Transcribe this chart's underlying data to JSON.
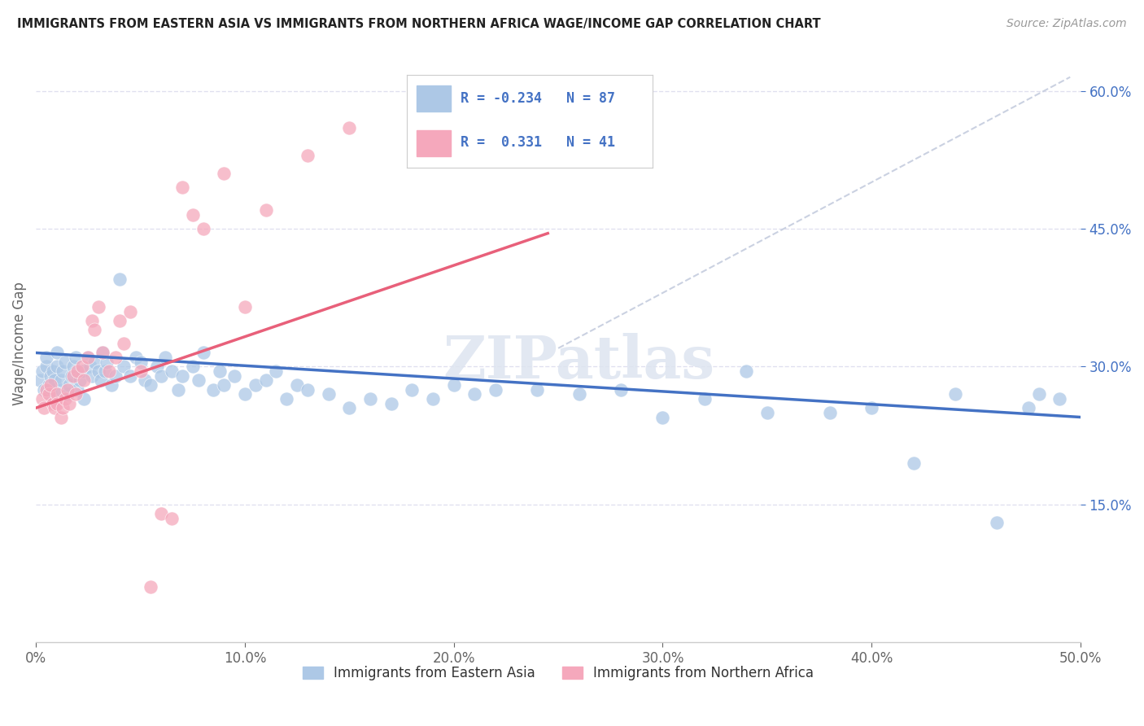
{
  "title": "IMMIGRANTS FROM EASTERN ASIA VS IMMIGRANTS FROM NORTHERN AFRICA WAGE/INCOME GAP CORRELATION CHART",
  "source": "Source: ZipAtlas.com",
  "ylabel": "Wage/Income Gap",
  "legend_label1": "Immigrants from Eastern Asia",
  "legend_label2": "Immigrants from Northern Africa",
  "R1": -0.234,
  "N1": 87,
  "R2": 0.331,
  "N2": 41,
  "xlim": [
    0.0,
    0.5
  ],
  "ylim": [
    0.0,
    0.65
  ],
  "xticks": [
    0.0,
    0.1,
    0.2,
    0.3,
    0.4,
    0.5
  ],
  "yticks_right": [
    0.15,
    0.3,
    0.45,
    0.6
  ],
  "yticks_grid": [
    0.15,
    0.3,
    0.45,
    0.6
  ],
  "color_blue": "#adc8e6",
  "color_pink": "#f5a8bc",
  "color_blue_line": "#4472c4",
  "color_pink_line": "#e8607a",
  "color_dashed": "#c8cfe0",
  "background": "#ffffff",
  "watermark": "ZIPatlas",
  "blue_line_x": [
    0.0,
    0.5
  ],
  "blue_line_y": [
    0.315,
    0.245
  ],
  "pink_line_x": [
    0.0,
    0.245
  ],
  "pink_line_y": [
    0.255,
    0.445
  ],
  "dashed_line_x": [
    0.25,
    0.495
  ],
  "dashed_line_y": [
    0.32,
    0.615
  ],
  "eastern_asia_x": [
    0.002,
    0.003,
    0.004,
    0.005,
    0.005,
    0.006,
    0.007,
    0.007,
    0.008,
    0.009,
    0.01,
    0.01,
    0.012,
    0.012,
    0.013,
    0.014,
    0.015,
    0.016,
    0.017,
    0.018,
    0.019,
    0.02,
    0.021,
    0.022,
    0.023,
    0.025,
    0.026,
    0.027,
    0.028,
    0.03,
    0.031,
    0.032,
    0.033,
    0.034,
    0.036,
    0.038,
    0.04,
    0.042,
    0.045,
    0.048,
    0.05,
    0.052,
    0.055,
    0.058,
    0.06,
    0.062,
    0.065,
    0.068,
    0.07,
    0.075,
    0.078,
    0.08,
    0.085,
    0.088,
    0.09,
    0.095,
    0.1,
    0.105,
    0.11,
    0.115,
    0.12,
    0.125,
    0.13,
    0.14,
    0.15,
    0.16,
    0.17,
    0.18,
    0.19,
    0.2,
    0.21,
    0.22,
    0.24,
    0.26,
    0.28,
    0.3,
    0.32,
    0.35,
    0.38,
    0.4,
    0.42,
    0.44,
    0.46,
    0.475,
    0.48,
    0.49,
    0.34
  ],
  "eastern_asia_y": [
    0.285,
    0.295,
    0.275,
    0.3,
    0.31,
    0.28,
    0.27,
    0.29,
    0.295,
    0.285,
    0.3,
    0.315,
    0.275,
    0.285,
    0.295,
    0.305,
    0.27,
    0.28,
    0.29,
    0.3,
    0.31,
    0.275,
    0.285,
    0.295,
    0.265,
    0.31,
    0.3,
    0.29,
    0.305,
    0.295,
    0.285,
    0.315,
    0.295,
    0.305,
    0.28,
    0.29,
    0.395,
    0.3,
    0.29,
    0.31,
    0.305,
    0.285,
    0.28,
    0.3,
    0.29,
    0.31,
    0.295,
    0.275,
    0.29,
    0.3,
    0.285,
    0.315,
    0.275,
    0.295,
    0.28,
    0.29,
    0.27,
    0.28,
    0.285,
    0.295,
    0.265,
    0.28,
    0.275,
    0.27,
    0.255,
    0.265,
    0.26,
    0.275,
    0.265,
    0.28,
    0.27,
    0.275,
    0.275,
    0.27,
    0.275,
    0.245,
    0.265,
    0.25,
    0.25,
    0.255,
    0.195,
    0.27,
    0.13,
    0.255,
    0.27,
    0.265,
    0.295
  ],
  "northern_africa_x": [
    0.003,
    0.004,
    0.005,
    0.006,
    0.007,
    0.008,
    0.009,
    0.01,
    0.01,
    0.012,
    0.013,
    0.014,
    0.015,
    0.016,
    0.018,
    0.019,
    0.02,
    0.022,
    0.023,
    0.025,
    0.027,
    0.028,
    0.03,
    0.032,
    0.035,
    0.038,
    0.04,
    0.042,
    0.045,
    0.05,
    0.055,
    0.06,
    0.065,
    0.07,
    0.075,
    0.08,
    0.09,
    0.1,
    0.11,
    0.13,
    0.15
  ],
  "northern_africa_y": [
    0.265,
    0.255,
    0.275,
    0.27,
    0.28,
    0.26,
    0.255,
    0.27,
    0.26,
    0.245,
    0.255,
    0.265,
    0.275,
    0.26,
    0.29,
    0.27,
    0.295,
    0.3,
    0.285,
    0.31,
    0.35,
    0.34,
    0.365,
    0.315,
    0.295,
    0.31,
    0.35,
    0.325,
    0.36,
    0.295,
    0.06,
    0.14,
    0.135,
    0.495,
    0.465,
    0.45,
    0.51,
    0.365,
    0.47,
    0.53,
    0.56
  ]
}
